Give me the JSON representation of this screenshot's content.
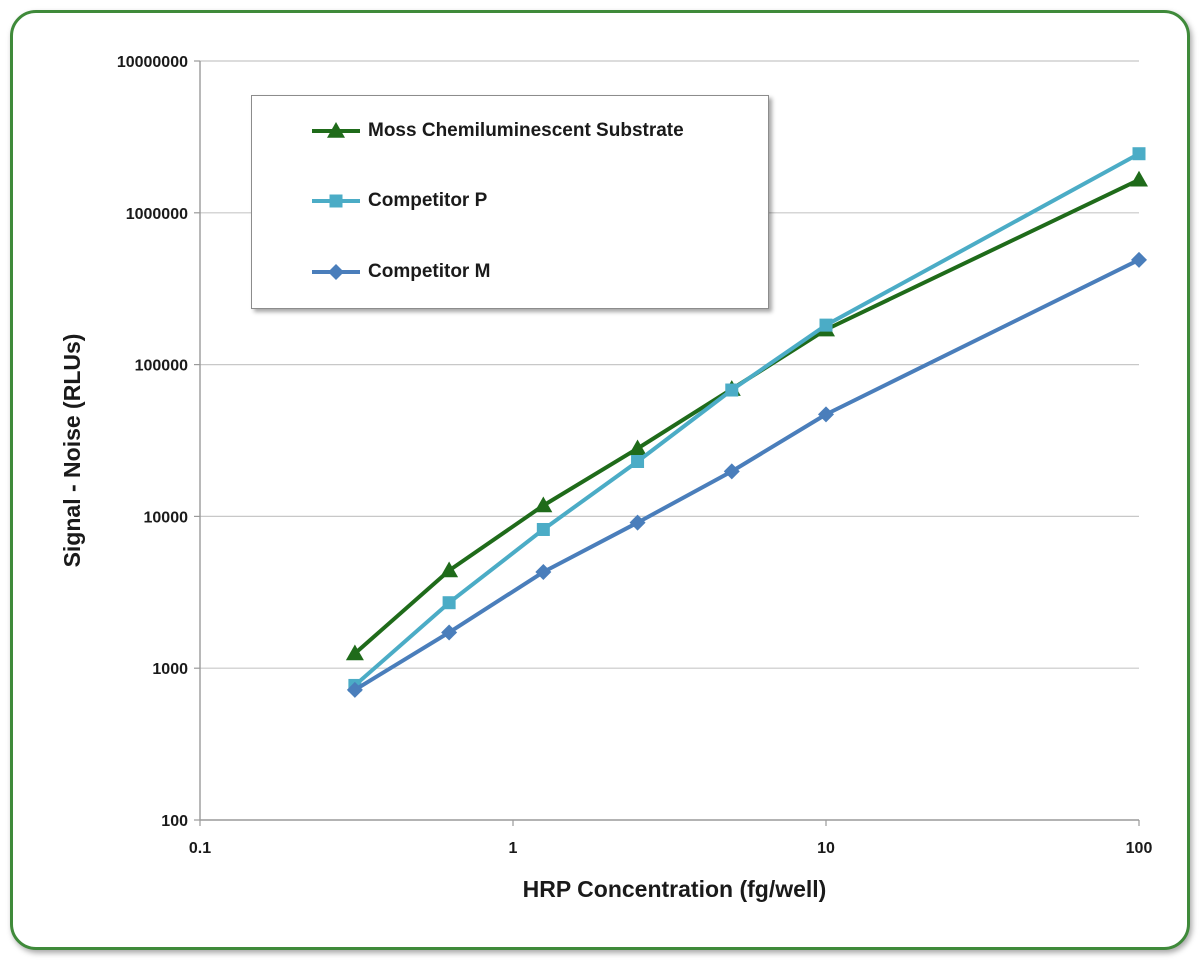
{
  "chart_data": {
    "type": "line",
    "title": "",
    "xlabel": "HRP Concentration (fg/well)",
    "ylabel": "Signal - Noise (RLUs)",
    "x_scale": "log",
    "y_scale": "log",
    "xlim": [
      0.1,
      100
    ],
    "ylim": [
      100,
      10000000
    ],
    "x_ticks": [
      "0.1",
      "1",
      "10",
      "100"
    ],
    "y_ticks": [
      "100",
      "1000",
      "10000",
      "100000",
      "1000000",
      "10000000"
    ],
    "grid": "horizontal",
    "legend_position": "top-left",
    "series": [
      {
        "name": "Moss Chemiluminescent Substrate",
        "color": "#1f6b1a",
        "marker": "triangle",
        "x": [
          0.3125,
          0.625,
          1.25,
          2.5,
          5,
          10,
          100
        ],
        "y": [
          1250,
          4400,
          11800,
          28000,
          69000,
          170000,
          1650000
        ]
      },
      {
        "name": "Competitor P",
        "color": "#4bacc6",
        "marker": "square",
        "x": [
          0.3125,
          0.625,
          1.25,
          2.5,
          5,
          10,
          100
        ],
        "y": [
          770,
          2700,
          8200,
          23000,
          68000,
          182000,
          2450000
        ]
      },
      {
        "name": "Competitor M",
        "color": "#4a7ebb",
        "marker": "diamond",
        "x": [
          0.3125,
          0.625,
          1.25,
          2.5,
          5,
          10,
          100
        ],
        "y": [
          720,
          1720,
          4300,
          9100,
          19800,
          47000,
          490000
        ]
      }
    ]
  }
}
